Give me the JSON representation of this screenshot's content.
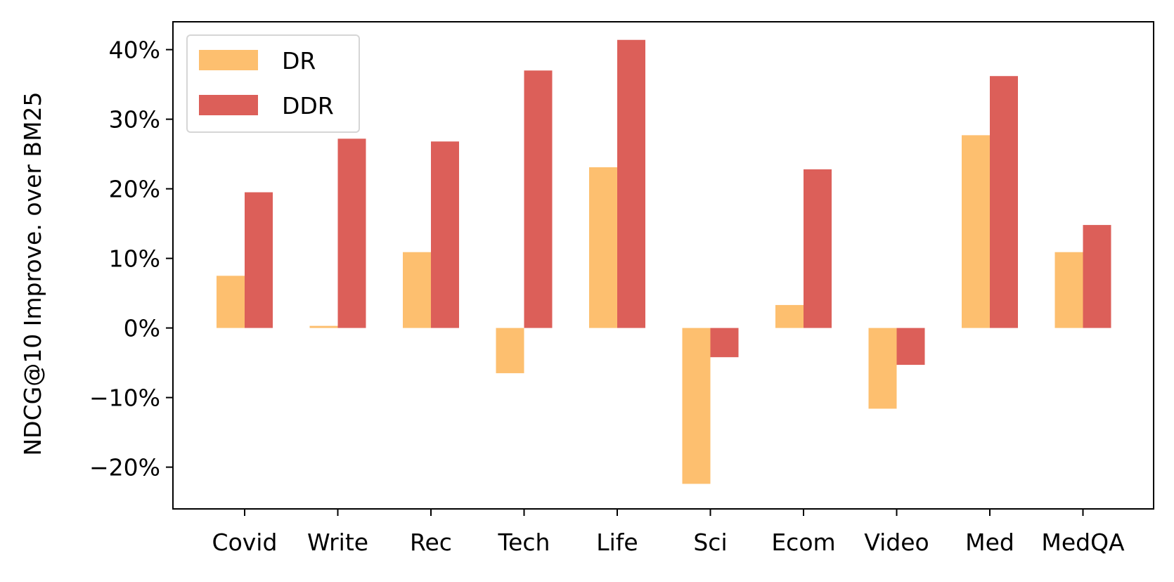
{
  "chart_data": {
    "type": "bar",
    "title": "",
    "xlabel": "",
    "ylabel": "NDCG@10 Improve. over BM25",
    "categories": [
      "Covid",
      "Write",
      "Rec",
      "Tech",
      "Life",
      "Sci",
      "Ecom",
      "Video",
      "Med",
      "MedQA"
    ],
    "series": [
      {
        "name": "DR",
        "color": "#fdbf6f",
        "values": [
          7.5,
          0.3,
          10.9,
          -6.5,
          23.1,
          -22.4,
          3.3,
          -11.6,
          27.7,
          10.9
        ]
      },
      {
        "name": "DDR",
        "color": "#dc5f59",
        "values": [
          19.5,
          27.2,
          26.8,
          37.0,
          41.4,
          -4.2,
          22.8,
          -5.3,
          36.2,
          14.8
        ]
      }
    ],
    "ylim": [
      -26,
      44
    ],
    "yticks": [
      -20,
      -10,
      0,
      10,
      20,
      30,
      40
    ],
    "ytick_labels": [
      "−20%",
      "−10%",
      "0%",
      "10%",
      "20%",
      "30%",
      "40%"
    ],
    "grid": false,
    "legend_position": "top-left"
  }
}
